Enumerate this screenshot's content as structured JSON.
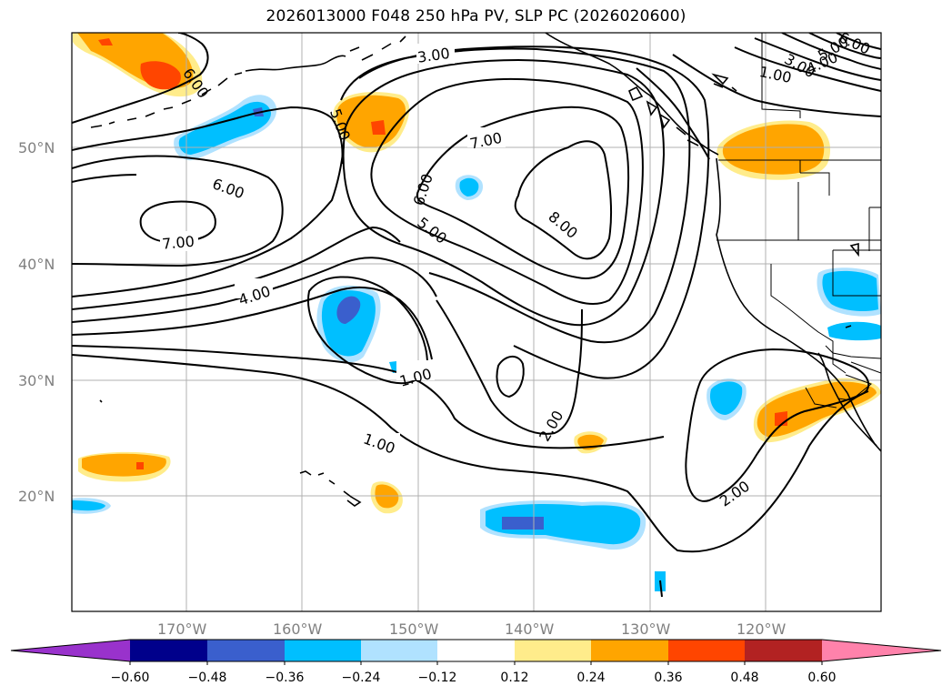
{
  "title": "2026013000 F048 250 hPa PV, SLP PC (2026020600)",
  "lat_labels": [
    "50°N",
    "40°N",
    "30°N",
    "20°N"
  ],
  "lon_labels": [
    "170°W",
    "160°W",
    "150°W",
    "140°W",
    "130°W",
    "120°W"
  ],
  "contour_labels": [
    "3.00",
    "6.00",
    "5.00",
    "7.00",
    "6.00",
    "6.00",
    "7.00",
    "5.00",
    "8.00",
    "4.00",
    "1.00",
    "1.00",
    "2.00",
    "2.00",
    "1.00",
    "3.00",
    "4.00",
    "5.00",
    "6.00"
  ],
  "colorbar": {
    "ticks": [
      "−0.60",
      "−0.48",
      "−0.36",
      "−0.24",
      "−0.12",
      "0.12",
      "0.24",
      "0.36",
      "0.48",
      "0.60"
    ],
    "colors": [
      "#9932cc",
      "#00008b",
      "#3a5fcd",
      "#00bfff",
      "#b0e2ff",
      "#ffffff",
      "#ffec8b",
      "#ffa500",
      "#ff4500",
      "#b22222",
      "#ff82ab"
    ]
  }
}
